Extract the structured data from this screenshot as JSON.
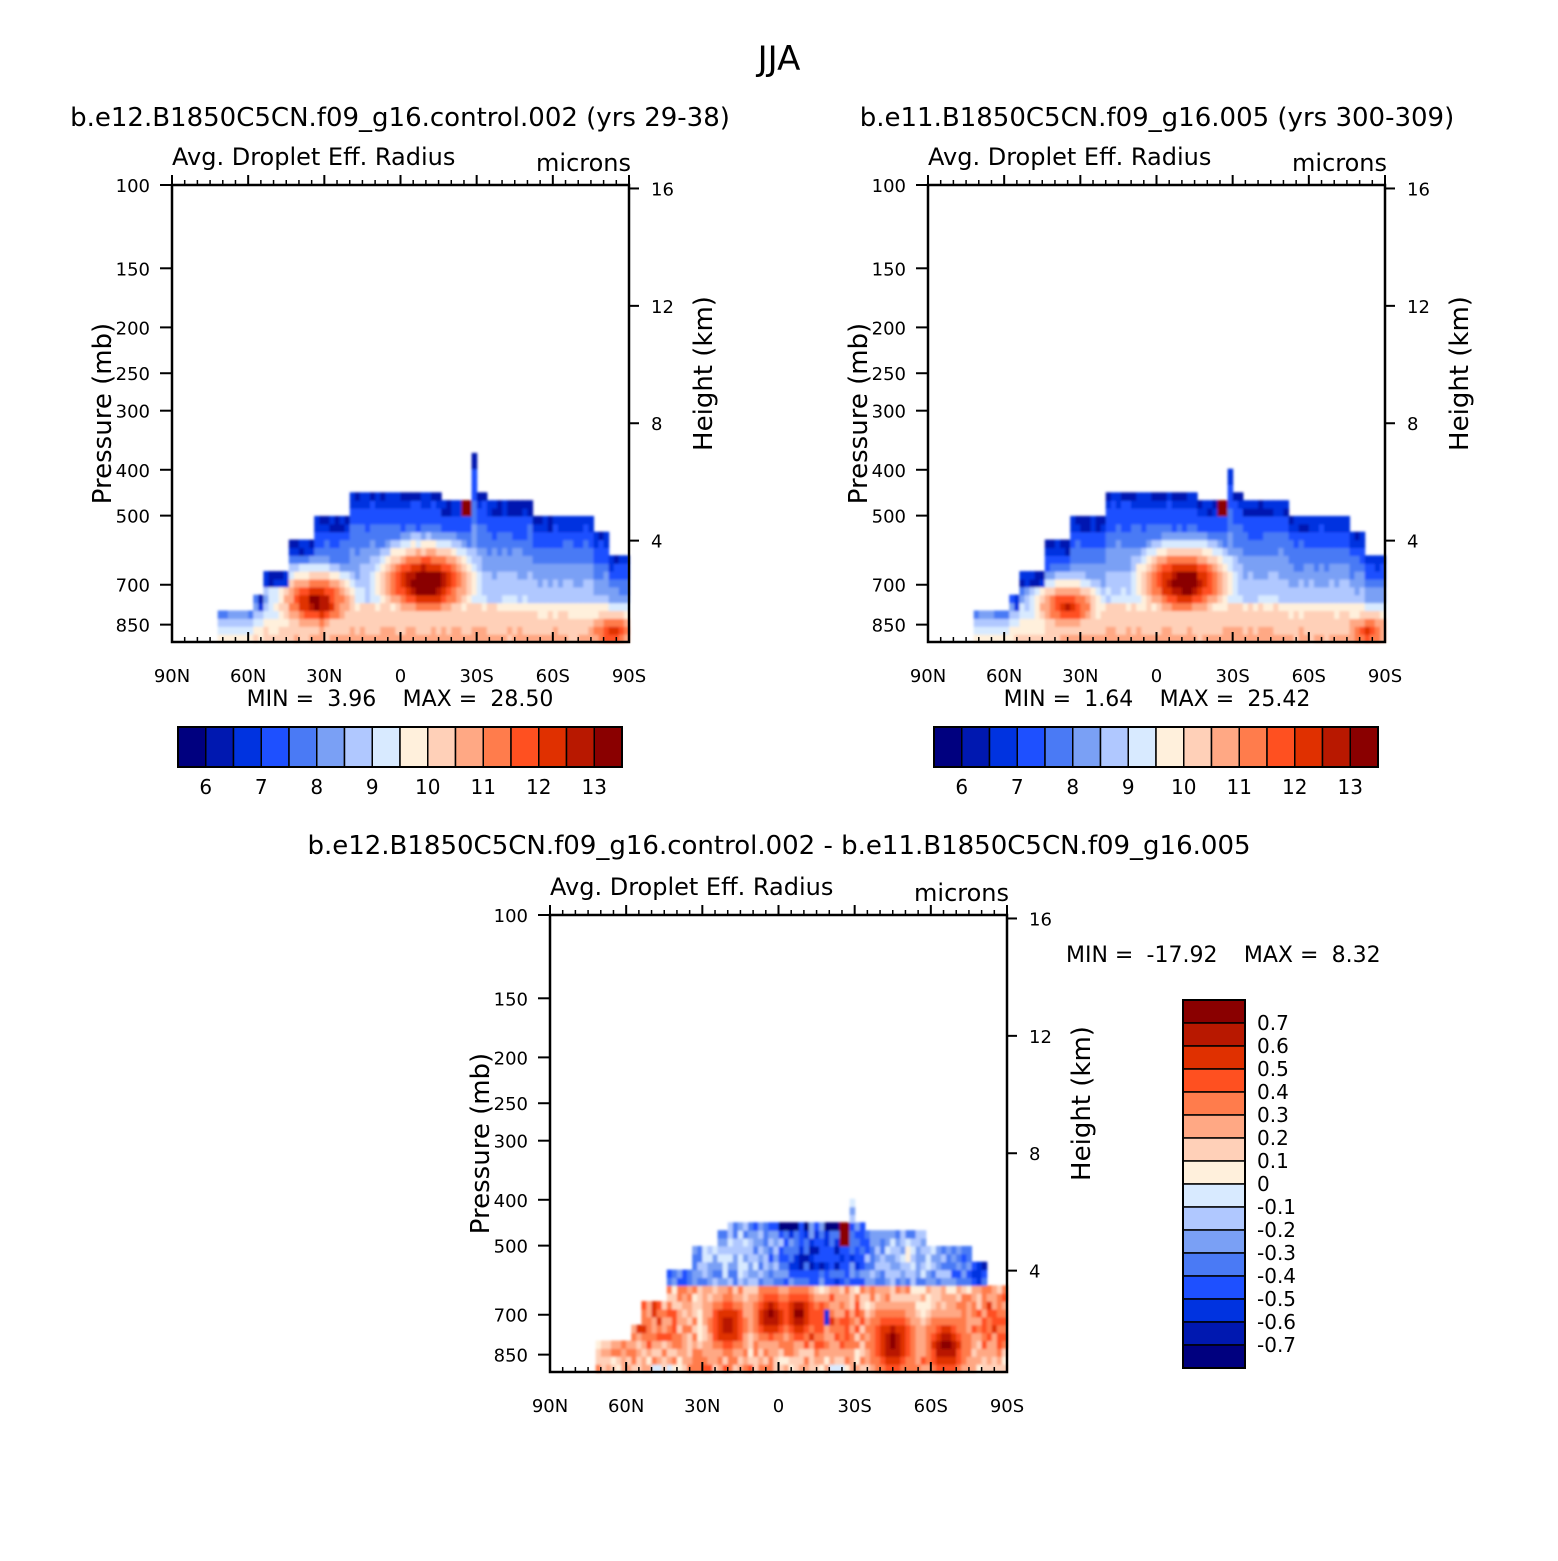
{
  "figure": {
    "title": "JJA"
  },
  "palettes": {
    "mean": [
      "#00007f",
      "#0018b0",
      "#0033e0",
      "#1e50ff",
      "#4a7af5",
      "#7aa0f5",
      "#b0c8ff",
      "#d8eaff",
      "#fff0dc",
      "#ffd0b8",
      "#ffa884",
      "#ff7c4c",
      "#ff5020",
      "#e03000",
      "#b81800",
      "#8a0000"
    ],
    "diff": [
      "#00007f",
      "#0018b0",
      "#0033e0",
      "#1e50ff",
      "#4a7af5",
      "#7aa0f5",
      "#b0c8ff",
      "#d8eaff",
      "#fff0dc",
      "#ffd0b8",
      "#ffa884",
      "#ff7c4c",
      "#ff5020",
      "#e03000",
      "#b81800",
      "#8a0000"
    ]
  },
  "chart_data": [
    {
      "type": "heatmap",
      "title": "b.e12.B1850C5CN.f09_g16.control.002 (yrs 29-38)",
      "subtitle": "Avg. Droplet Eff. Radius",
      "units": "microns",
      "xlabel": "",
      "ylabel": "Pressure (mb)",
      "y2label": "Height (km)",
      "x_ticks": [
        "90N",
        "60N",
        "30N",
        "0",
        "30S",
        "60S",
        "90S"
      ],
      "y_ticks": [
        "100",
        "150",
        "200",
        "250",
        "300",
        "400",
        "500",
        "700",
        "850"
      ],
      "y2_ticks": [
        "16",
        "12",
        "8",
        "4"
      ],
      "stats": {
        "min_label": "MIN =",
        "min": "3.96",
        "max_label": "MAX =",
        "max": "28.50"
      },
      "colorbar": {
        "orientation": "horizontal",
        "labels": [
          "6",
          "7",
          "8",
          "9",
          "10",
          "11",
          "12",
          "13"
        ]
      },
      "field": {
        "cap_lat": [
          -60,
          57
        ],
        "tops": [
          [
            -90,
            610
          ],
          [
            -82,
            610
          ],
          [
            -82,
            545
          ],
          [
            -76,
            545
          ],
          [
            -76,
            500
          ],
          [
            -51,
            500
          ],
          [
            -51,
            460
          ],
          [
            -34,
            460
          ],
          [
            -34,
            440
          ],
          [
            -29,
            440
          ],
          [
            -29,
            365
          ],
          [
            -27,
            365
          ],
          [
            -27,
            460
          ],
          [
            -19,
            460
          ],
          [
            -15,
            440
          ],
          [
            -9,
            440
          ],
          [
            9,
            440
          ],
          [
            10,
            440
          ],
          [
            21,
            440
          ],
          [
            21,
            500
          ],
          [
            35,
            500
          ],
          [
            35,
            570
          ],
          [
            45,
            570
          ],
          [
            45,
            660
          ],
          [
            55,
            660
          ],
          [
            55,
            740
          ],
          [
            58,
            740
          ],
          [
            58,
            780
          ],
          [
            73,
            780
          ],
          [
            73,
            925
          ],
          [
            90,
            925
          ]
        ],
        "blobs": [
          {
            "lat": -10,
            "p": 690,
            "value": 14.5
          },
          {
            "lat": 33,
            "p": 760,
            "value": 13.6
          },
          {
            "lat": -83,
            "p": 880,
            "value": 12.6
          }
        ]
      }
    },
    {
      "type": "heatmap",
      "title": "b.e11.B1850C5CN.f09_g16.005 (yrs 300-309)",
      "subtitle": "Avg. Droplet Eff. Radius",
      "units": "microns",
      "xlabel": "",
      "ylabel": "Pressure (mb)",
      "y2label": "Height (km)",
      "x_ticks": [
        "90N",
        "60N",
        "30N",
        "0",
        "30S",
        "60S",
        "90S"
      ],
      "y_ticks": [
        "100",
        "150",
        "200",
        "250",
        "300",
        "400",
        "500",
        "700",
        "850"
      ],
      "y2_ticks": [
        "16",
        "12",
        "8",
        "4"
      ],
      "stats": {
        "min_label": "MIN =",
        "min": "1.64",
        "max_label": "MAX =",
        "max": "25.42"
      },
      "colorbar": {
        "orientation": "horizontal",
        "labels": [
          "6",
          "7",
          "8",
          "9",
          "10",
          "11",
          "12",
          "13"
        ]
      },
      "field": {
        "cap_lat": [
          -60,
          57
        ],
        "tops": [
          [
            -90,
            610
          ],
          [
            -82,
            610
          ],
          [
            -82,
            545
          ],
          [
            -76,
            545
          ],
          [
            -76,
            500
          ],
          [
            -51,
            500
          ],
          [
            -51,
            460
          ],
          [
            -34,
            460
          ],
          [
            -34,
            440
          ],
          [
            -29,
            440
          ],
          [
            -29,
            400
          ],
          [
            -27,
            400
          ],
          [
            -27,
            460
          ],
          [
            -19,
            460
          ],
          [
            -15,
            440
          ],
          [
            -9,
            440
          ],
          [
            9,
            440
          ],
          [
            10,
            440
          ],
          [
            21,
            440
          ],
          [
            21,
            500
          ],
          [
            35,
            500
          ],
          [
            35,
            570
          ],
          [
            45,
            570
          ],
          [
            45,
            660
          ],
          [
            55,
            660
          ],
          [
            55,
            740
          ],
          [
            58,
            740
          ],
          [
            58,
            780
          ],
          [
            73,
            780
          ],
          [
            73,
            925
          ],
          [
            90,
            925
          ]
        ],
        "blobs": [
          {
            "lat": -11,
            "p": 690,
            "value": 14.3
          },
          {
            "lat": 35,
            "p": 780,
            "value": 12.9
          },
          {
            "lat": -83,
            "p": 880,
            "value": 12.4
          }
        ]
      }
    },
    {
      "type": "heatmap",
      "title": "b.e12.B1850C5CN.f09_g16.control.002 - b.e11.B1850C5CN.f09_g16.005",
      "subtitle": "Avg. Droplet Eff. Radius",
      "units": "microns",
      "xlabel": "",
      "ylabel": "Pressure (mb)",
      "y2label": "Height (km)",
      "x_ticks": [
        "90N",
        "60N",
        "30N",
        "0",
        "30S",
        "60S",
        "90S"
      ],
      "y_ticks": [
        "100",
        "150",
        "200",
        "250",
        "300",
        "400",
        "500",
        "700",
        "850"
      ],
      "y2_ticks": [
        "16",
        "12",
        "8",
        "4"
      ],
      "stats": {
        "min_label": "MIN =",
        "min": "-17.92",
        "max_label": "MAX =",
        "max": "8.32"
      },
      "colorbar": {
        "orientation": "vertical",
        "labels": [
          "0.7",
          "0.6",
          "0.5",
          "0.4",
          "0.3",
          "0.2",
          "0.1",
          "0",
          "-0.1",
          "-0.2",
          "-0.3",
          "-0.4",
          "-0.5",
          "-0.6",
          "-0.7"
        ]
      },
      "field": {
        "tops": [
          [
            -90,
            610
          ],
          [
            -82,
            610
          ],
          [
            -82,
            545
          ],
          [
            -76,
            545
          ],
          [
            -76,
            500
          ],
          [
            -58,
            500
          ],
          [
            -58,
            460
          ],
          [
            -34,
            460
          ],
          [
            -34,
            440
          ],
          [
            -29,
            440
          ],
          [
            -29,
            400
          ],
          [
            -27,
            400
          ],
          [
            -27,
            440
          ],
          [
            -9,
            440
          ],
          [
            10,
            440
          ],
          [
            21,
            440
          ],
          [
            21,
            460
          ],
          [
            25,
            460
          ],
          [
            25,
            500
          ],
          [
            35,
            500
          ],
          [
            35,
            570
          ],
          [
            45,
            570
          ],
          [
            45,
            660
          ],
          [
            55,
            660
          ],
          [
            55,
            740
          ],
          [
            58,
            740
          ],
          [
            58,
            780
          ],
          [
            73,
            780
          ],
          [
            73,
            925
          ],
          [
            90,
            925
          ]
        ]
      }
    }
  ]
}
